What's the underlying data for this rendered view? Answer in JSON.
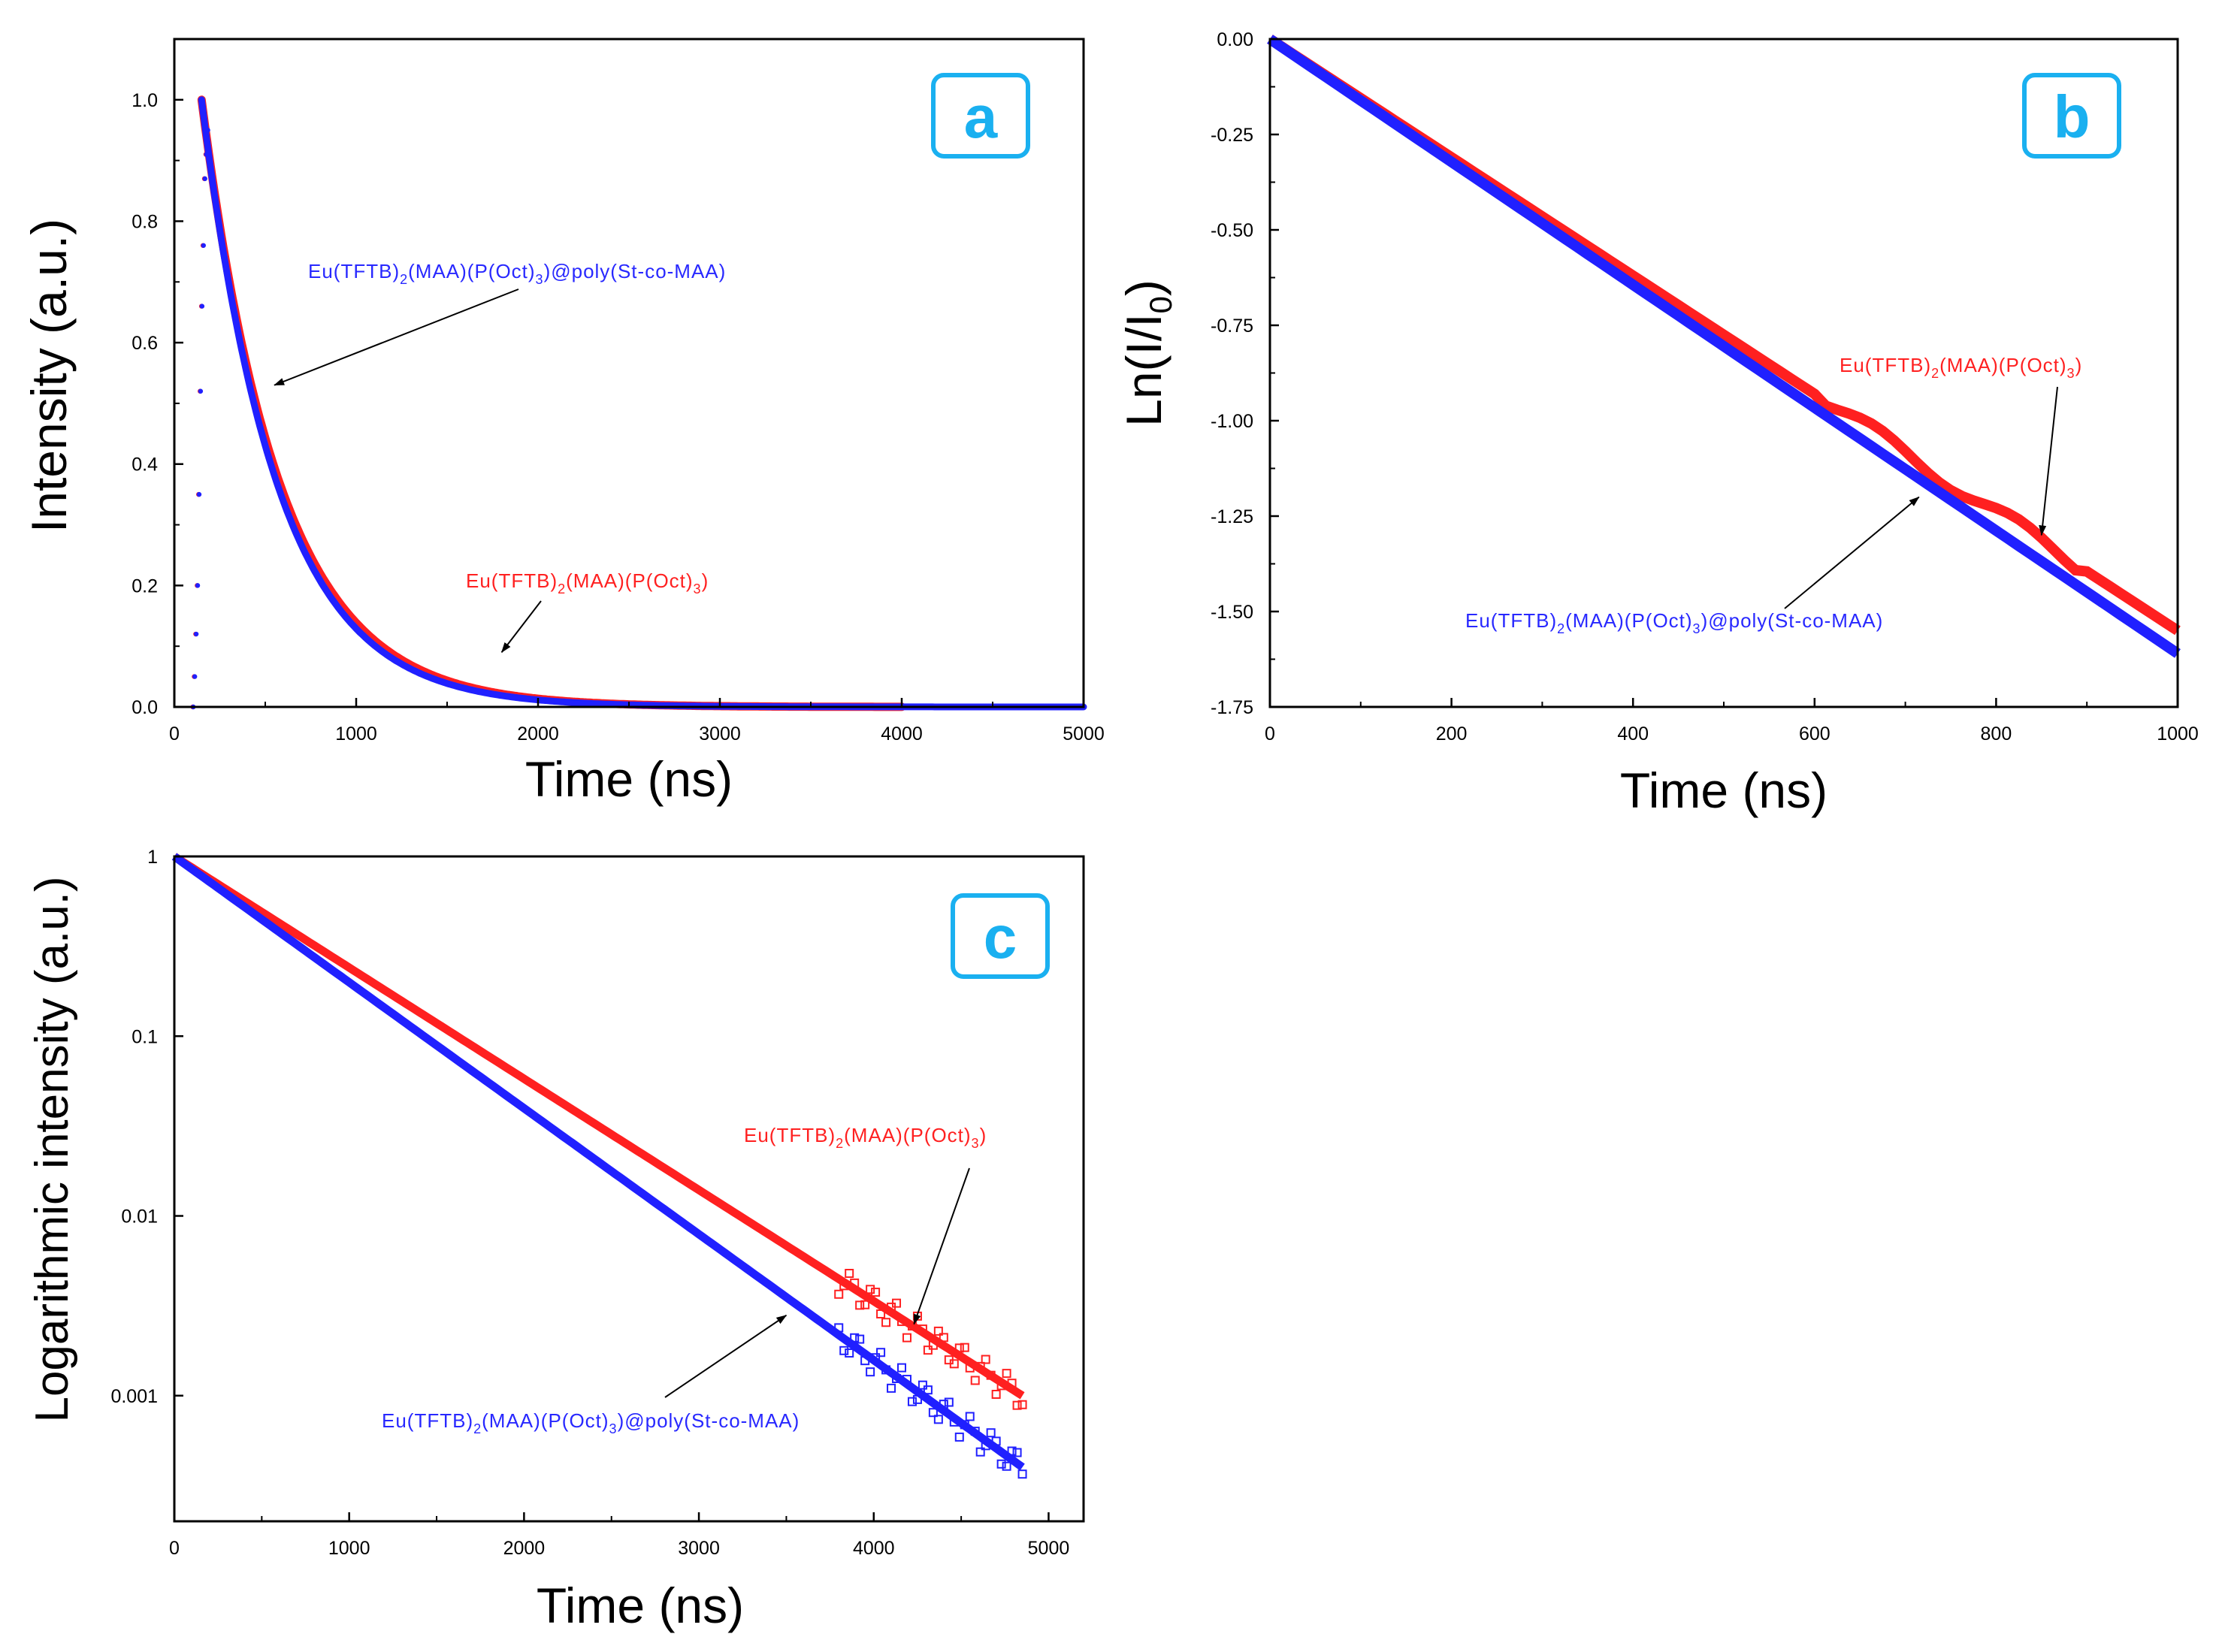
{
  "chart_data": [
    {
      "type": "scatter",
      "panel": "a",
      "xlabel": "Time (ns)",
      "ylabel": "Intensity (a.u.)",
      "xlim": [
        0,
        5000
      ],
      "ylim": [
        0,
        1.1
      ],
      "xticks": [
        "0",
        "1000",
        "2000",
        "3000",
        "4000",
        "5000"
      ],
      "yticks": [
        "0.0",
        "0.2",
        "0.4",
        "0.6",
        "0.8",
        "1.0"
      ],
      "series": [
        {
          "name": "Eu(TFTB)2(MAA)(P(Oct)3)",
          "color": "#ff2020",
          "peak_time": 150,
          "tau": 430,
          "end_time": 4000
        },
        {
          "name": "Eu(TFTB)2(MAA)(P(Oct)3)@poly(St-co-MAA)",
          "color": "#2020ff",
          "peak_time": 150,
          "tau": 415,
          "end_time": 5000
        }
      ],
      "annotations": [
        {
          "base": "Eu(TFTB)",
          "sub1": "2",
          "mid": "(MAA)(P(Oct)",
          "sub2": "3",
          "tail": ")@poly(St-co-MAA)",
          "color": "#2828ff",
          "arrow_to": [
            550,
            0.53
          ]
        },
        {
          "base": "Eu(TFTB)",
          "sub1": "2",
          "mid": "(MAA)(P(Oct)",
          "sub2": "3",
          "tail": ")",
          "color": "#ff2020",
          "arrow_to": [
            1800,
            0.09
          ]
        }
      ]
    },
    {
      "type": "scatter",
      "panel": "b",
      "xlabel": "Time (ns)",
      "ylabel": "Ln(I/I0)",
      "ylabel_parts": {
        "main": "Ln(I/I",
        "sub": "0",
        "end": ")"
      },
      "xlim": [
        0,
        1000
      ],
      "ylim": [
        -1.75,
        0.0
      ],
      "xticks": [
        "0",
        "200",
        "400",
        "600",
        "800",
        "1000"
      ],
      "yticks": [
        "0.00",
        "-0.25",
        "-0.50",
        "-0.75",
        "-1.00",
        "-1.25",
        "-1.50",
        "-1.75"
      ],
      "series": [
        {
          "name": "Eu(TFTB)2(MAA)(P(Oct)3)",
          "color": "#ff2020",
          "x": [
            0,
            1000
          ],
          "y": [
            0.0,
            -1.55
          ]
        },
        {
          "name": "Eu(TFTB)2(MAA)(P(Oct)3)@poly(St-co-MAA)",
          "color": "#2020ff",
          "x": [
            0,
            1000
          ],
          "y": [
            0.0,
            -1.61
          ]
        }
      ],
      "annotations": [
        {
          "base": "Eu(TFTB)",
          "sub1": "2",
          "mid": "(MAA)(P(Oct)",
          "sub2": "3",
          "tail": ")",
          "color": "#ff2020",
          "arrow_to": [
            850,
            -1.3
          ]
        },
        {
          "base": "Eu(TFTB)",
          "sub1": "2",
          "mid": "(MAA)(P(Oct)",
          "sub2": "3",
          "tail": ")@poly(St-co-MAA)",
          "color": "#2828ff",
          "arrow_to": [
            715,
            -1.2
          ]
        }
      ]
    },
    {
      "type": "scatter",
      "panel": "c",
      "yscale": "log",
      "xlabel": "Time (ns)",
      "ylabel": "Logarithmic intensity (a.u.)",
      "xlim": [
        0,
        5200
      ],
      "ylim": [
        0.0002,
        1
      ],
      "xticks": [
        "0",
        "1000",
        "2000",
        "3000",
        "4000",
        "5000"
      ],
      "yticks": [
        "1",
        "0.1",
        "0.01",
        "0.001"
      ],
      "series": [
        {
          "name": "Eu(TFTB)2(MAA)(P(Oct)3)",
          "color": "#ff2020",
          "x_end": 4850,
          "y_end": 0.001
        },
        {
          "name": "Eu(TFTB)2(MAA)(P(Oct)3)@poly(St-co-MAA)",
          "color": "#2020ff",
          "x_end": 4850,
          "y_end": 0.0004
        }
      ],
      "annotations": [
        {
          "base": "Eu(TFTB)",
          "sub1": "2",
          "mid": "(MAA)(P(Oct)",
          "sub2": "3",
          "tail": ")",
          "color": "#ff2020",
          "arrow_to": [
            4230,
            0.0025
          ]
        },
        {
          "base": "Eu(TFTB)",
          "sub1": "2",
          "mid": "(MAA)(P(Oct)",
          "sub2": "3",
          "tail": ")@poly(St-co-MAA)",
          "color": "#2828ff",
          "arrow_to": [
            3500,
            0.0028
          ]
        }
      ]
    }
  ]
}
